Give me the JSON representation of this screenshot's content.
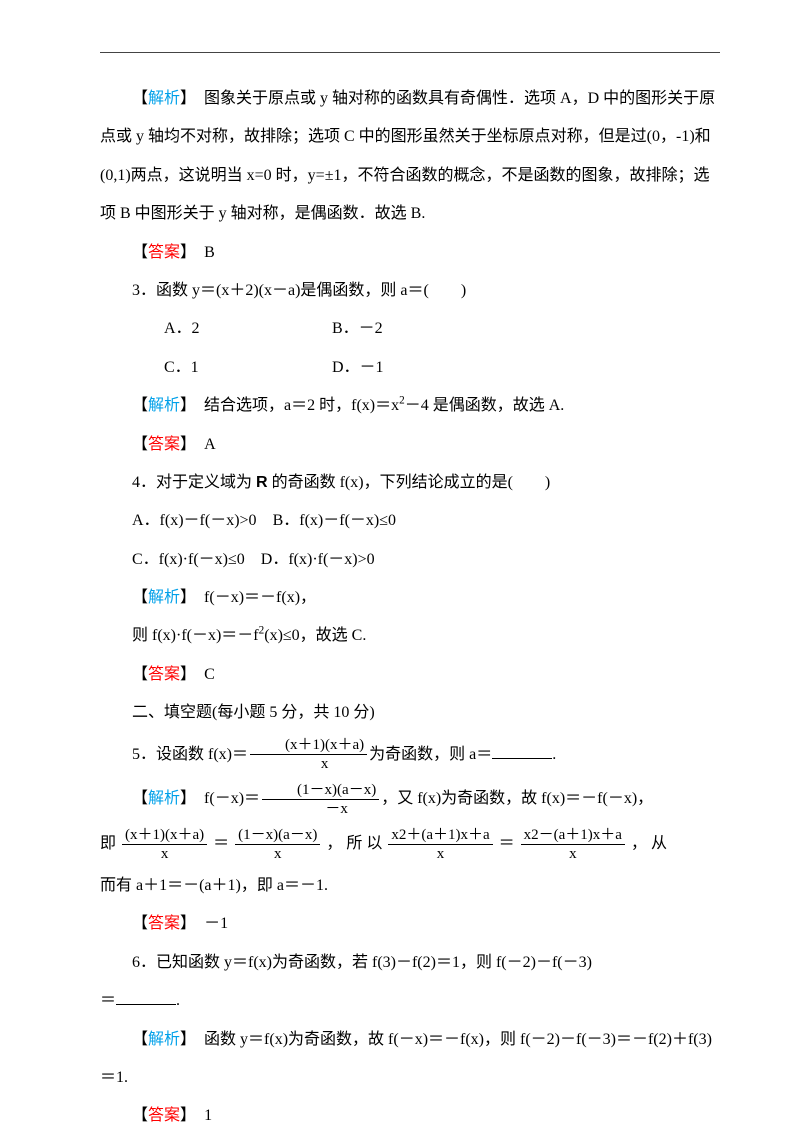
{
  "colors": {
    "analysis": "#00a0e9",
    "answer": "#ff0000",
    "text": "#000000",
    "rule": "#444444",
    "bg": "#ffffff"
  },
  "labels": {
    "analysis_open": "【",
    "analysis": "解析",
    "analysis_close": "】",
    "answer_open": "【",
    "answer": "答案",
    "answer_close": "】"
  },
  "q2": {
    "analysis": "　图象关于原点或 y 轴对称的函数具有奇偶性．选项 A，D 中的图形关于原点或 y 轴均不对称，故排除；选项 C 中的图形虽然关于坐标原点对称，但是过(0，-1)和(0,1)两点，这说明当 x=0 时，y=±1，不符合函数的概念，不是函数的图象，故排除；选项 B 中图形关于 y 轴对称，是偶函数．故选 B.",
    "answer": "B"
  },
  "q3": {
    "stem": "3．函数 y＝(x＋2)(x－a)是偶函数，则 a＝(　　)",
    "optA": "A．2",
    "optB": "B．－2",
    "optC": "C．1",
    "optD": "D．－1",
    "analysis_pre": "　结合选项，a＝2 时，f(x)＝x",
    "analysis_post": "－4 是偶函数，故选 A.",
    "answer": "A"
  },
  "q4": {
    "stem_pre": "4．对于定义域为 ",
    "stem_R": "R",
    "stem_post": " 的奇函数 f(x)，下列结论成立的是(　　)",
    "optA": "A．f(x)－f(－x)>0",
    "optB": "B．f(x)－f(－x)≤0",
    "optC": "C．f(x)·f(－x)≤0",
    "optD": "D．f(x)·f(－x)>0",
    "analysis_l1": "　f(－x)＝－f(x)，",
    "analysis_l2_pre": "则 f(x)·f(－x)＝－f",
    "analysis_l2_post": "(x)≤0，故选 C.",
    "answer": "C"
  },
  "section2": "二、填空题(每小题 5 分，共 10 分)",
  "q5": {
    "stem_pre": "5．设函数 f(x)＝",
    "frac_num": "(x＋1)(x＋a)",
    "frac_den": "x",
    "stem_post": "为奇函数，则 a＝",
    "analysis_pre": "　f(－x)＝",
    "f1_num": "(1－x)(a－x)",
    "f1_den": "－x",
    "analysis_mid1": "，又 f(x)为奇函数，故 f(x)＝－f(－x)，",
    "line2_pre": "即",
    "f2_num": "(x＋1)(x＋a)",
    "f2_den": "x",
    "eq": "＝",
    "f3_num": "(1－x)(a－x)",
    "f3_den": "x",
    "so": "， 所 以",
    "f4_num": "x2＋(a＋1)x＋a",
    "f4_den": "x",
    "f5_num": "x2－(a＋1)x＋a",
    "f5_den": "x",
    "tail2": "， 从",
    "line3": "而有 a＋1＝－(a＋1)，即 a＝－1.",
    "answer": "－1"
  },
  "q6": {
    "stem_l1": "6．已知函数 y＝f(x)为奇函数，若 f(3)－f(2)＝1，则 f(－2)－f(－3)",
    "stem_l2_pre": "＝",
    "analysis": "　函数 y＝f(x)为奇函数，故 f(－x)＝－f(x)，则 f(－2)－f(－3)＝－f(2)＋f(3)＝1.",
    "answer": "1"
  }
}
